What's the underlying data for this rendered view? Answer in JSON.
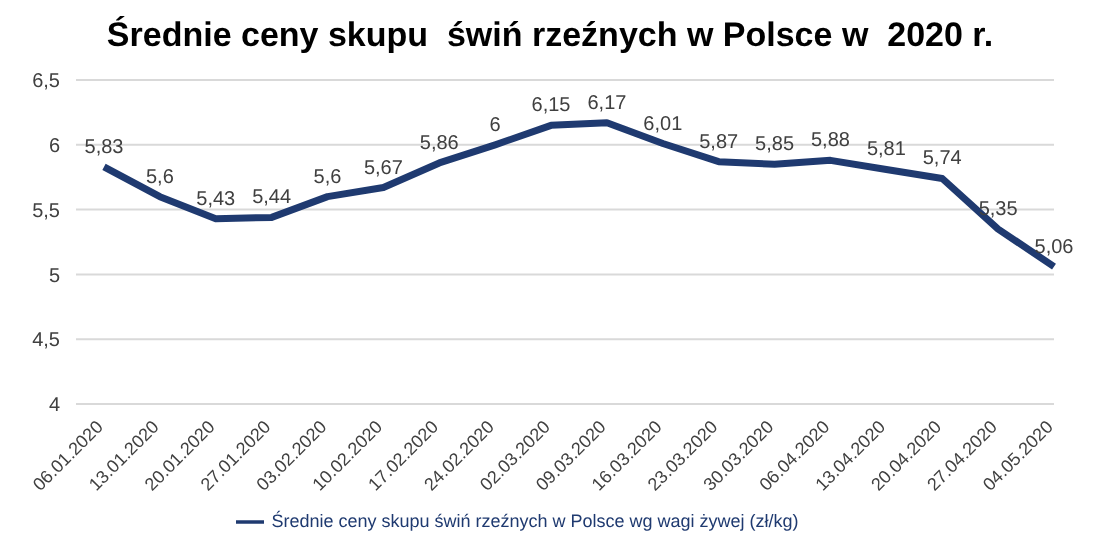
{
  "chart_data": {
    "type": "line",
    "title": "Średnie ceny skupu  świń rzeźnych w Polsce w  2020 r.",
    "categories": [
      "06.01.2020",
      "13.01.2020",
      "20.01.2020",
      "27.01.2020",
      "03.02.2020",
      "10.02.2020",
      "17.02.2020",
      "24.02.2020",
      "02.03.2020",
      "09.03.2020",
      "16.03.2020",
      "23.03.2020",
      "30.03.2020",
      "06.04.2020",
      "13.04.2020",
      "20.04.2020",
      "27.04.2020",
      "04.05.2020"
    ],
    "series": [
      {
        "name": "Średnie ceny skupu świń rzeźnych w Polsce wg wagi żywej  (zł/kg)",
        "color": "#1f3a70",
        "values": [
          5.83,
          5.6,
          5.43,
          5.44,
          5.6,
          5.67,
          5.86,
          6,
          6.15,
          6.17,
          6.01,
          5.87,
          5.85,
          5.88,
          5.81,
          5.74,
          5.35,
          5.06
        ],
        "value_labels": [
          "5,83",
          "5,6",
          "5,43",
          "5,44",
          "5,6",
          "5,67",
          "5,86",
          "6",
          "6,15",
          "6,17",
          "6,01",
          "5,87",
          "5,85",
          "5,88",
          "5,81",
          "5,74",
          "5,35",
          "5,06"
        ]
      }
    ],
    "ylim": [
      4,
      6.5
    ],
    "yticks": [
      4,
      {
        "value": 4.5,
        "label": "4,5"
      },
      5,
      {
        "value": 5.5,
        "label": "5,5"
      },
      6,
      {
        "value": 6.5,
        "label": "6,5"
      }
    ],
    "grid": "y",
    "legend": "bottom",
    "marker": "none",
    "line_style": "solid"
  }
}
